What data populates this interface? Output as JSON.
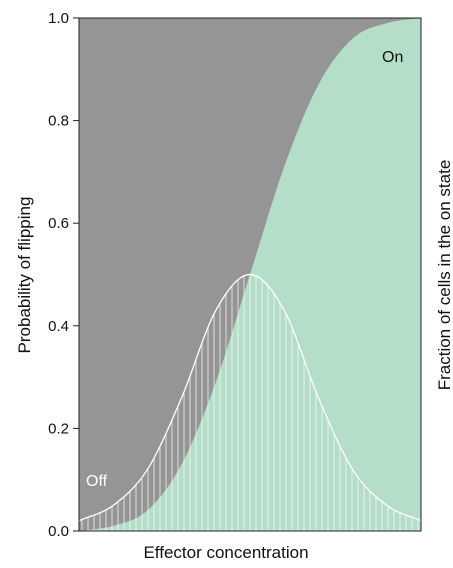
{
  "chart_data": {
    "type": "area",
    "title": "",
    "xlabel": "Effector concentration",
    "ylabel": "Probability of flipping",
    "ylabel_right": "Fraction of cells in the on state",
    "ylim": [
      0,
      1.0
    ],
    "yticks": [
      "0.0",
      "0.2",
      "0.4",
      "0.6",
      "0.8",
      "1.0"
    ],
    "x_ticks_shown": false,
    "grid": false,
    "regions": {
      "off_label": "Off",
      "on_label": "On"
    },
    "series": [
      {
        "name": "Fraction of cells in the on state",
        "style": "filled area (cumulative, sigmoid)",
        "x": [
          0.0,
          0.1,
          0.2,
          0.3,
          0.4,
          0.5,
          0.6,
          0.7,
          0.8,
          0.9,
          1.0
        ],
        "y": [
          0.0,
          0.01,
          0.04,
          0.13,
          0.29,
          0.5,
          0.71,
          0.87,
          0.96,
          0.99,
          1.0
        ]
      },
      {
        "name": "Probability of flipping",
        "style": "hatched bell curve (derivative)",
        "x": [
          0.0,
          0.1,
          0.2,
          0.3,
          0.4,
          0.5,
          0.6,
          0.7,
          0.8,
          0.9,
          1.0
        ],
        "y": [
          0.02,
          0.05,
          0.12,
          0.26,
          0.43,
          0.5,
          0.43,
          0.26,
          0.12,
          0.05,
          0.02
        ]
      }
    ]
  },
  "colors": {
    "off_region": "#959595",
    "on_region": "#b5dec8",
    "curve_line": "#ffffff",
    "off_label": "#ffffff",
    "on_label": "#111111"
  }
}
